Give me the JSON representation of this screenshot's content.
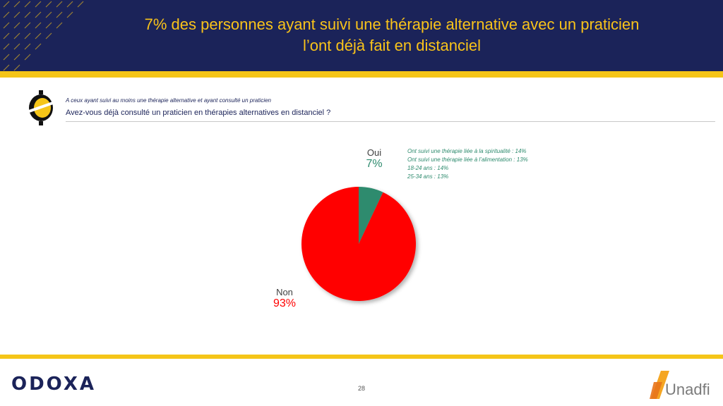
{
  "header": {
    "title_line1": "7% des personnes ayant suivi une thérapie alternative avec un praticien",
    "title_line2": "l’ont déjà fait en distanciel"
  },
  "question": {
    "subtitle": "A ceux ayant suivi au moins une thérapie alternative et ayant consulté un praticien",
    "text": "Avez-vous déjà consulté un praticien en thérapies alternatives en distanciel ?"
  },
  "chart_data": {
    "type": "pie",
    "categories": [
      "Oui",
      "Non"
    ],
    "values": [
      7,
      93
    ],
    "value_labels": [
      "7%",
      "93%"
    ],
    "colors": [
      "#2e8b6e",
      "#ff0000"
    ],
    "annotations": [
      "Ont suivi une thérapie liée à la spiritualité : 14%",
      "Ont suivi une thérapie liée à l’alimentation : 13%",
      "18-24 ans : 14%",
      "25-34 ans : 13%"
    ]
  },
  "footer": {
    "logo_left": "ODOXA",
    "page_number": "28",
    "logo_right": "Unadfi"
  },
  "colors": {
    "navy": "#1b2359",
    "yellow": "#f5c518",
    "oui": "#2e8b6e",
    "non": "#ff0000"
  }
}
